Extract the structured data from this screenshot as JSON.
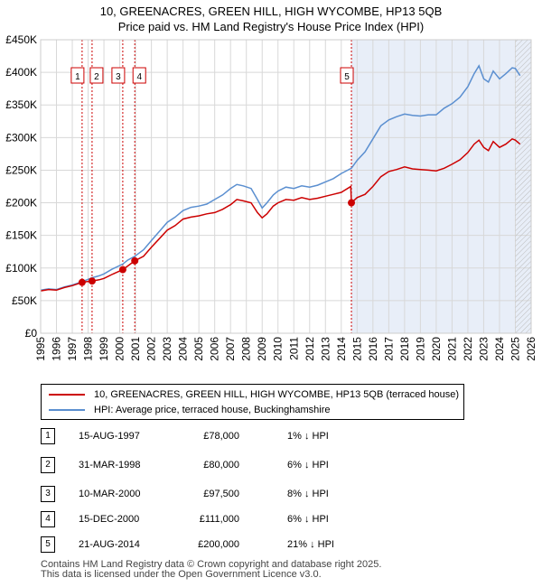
{
  "title_line1": "10, GREENACRES, GREEN HILL, HIGH WYCOMBE, HP13 5QB",
  "title_line2": "Price paid vs. HM Land Registry's House Price Index (HPI)",
  "colors": {
    "hpi": "#5b8fd0",
    "price": "#cc0000",
    "band": "#e8eef8",
    "vline": "#cc0000"
  },
  "chart_data": {
    "type": "line",
    "title": "10, GREENACRES, GREEN HILL, HIGH WYCOMBE, HP13 5QB",
    "subtitle": "Price paid vs. HM Land Registry's House Price Index (HPI)",
    "xlabel": "",
    "ylabel": "",
    "xlim": [
      1995,
      2026
    ],
    "ylim": [
      0,
      450000
    ],
    "grid": true,
    "y_ticks": [
      0,
      50000,
      100000,
      150000,
      200000,
      250000,
      300000,
      350000,
      400000,
      450000
    ],
    "y_tick_labels": [
      "£0",
      "£50K",
      "£100K",
      "£150K",
      "£200K",
      "£250K",
      "£300K",
      "£350K",
      "£400K",
      "£450K"
    ],
    "x_ticks": [
      1995,
      1996,
      1997,
      1998,
      1999,
      2000,
      2001,
      2002,
      2003,
      2004,
      2005,
      2006,
      2007,
      2008,
      2009,
      2010,
      2011,
      2012,
      2013,
      2014,
      2015,
      2016,
      2017,
      2018,
      2019,
      2020,
      2021,
      2022,
      2023,
      2024,
      2025,
      2026
    ],
    "x_tick_labels": [
      "1995",
      "1996",
      "1997",
      "1998",
      "1999",
      "2000",
      "2001",
      "2002",
      "2003",
      "2004",
      "2005",
      "2006",
      "2007",
      "2008",
      "2009",
      "2010",
      "2011",
      "2012",
      "2013",
      "2014",
      "2015",
      "2016",
      "2017",
      "2018",
      "2019",
      "2020",
      "2021",
      "2022",
      "2023",
      "2024",
      "2025",
      "2026"
    ],
    "highlight_from": 2014.64,
    "future_from": 2025.0,
    "series": [
      {
        "name": "10, GREENACRES, GREEN HILL, HIGH WYCOMBE, HP13 5QB (terraced house)",
        "color": "#cc0000",
        "x": [
          1995.0,
          1995.5,
          1996.0,
          1996.5,
          1997.0,
          1997.62,
          1997.9,
          1998.25,
          1998.7,
          1999.0,
          1999.5,
          2000.19,
          2000.5,
          2000.95,
          2001.5,
          2002.0,
          2002.5,
          2003.0,
          2003.5,
          2004.0,
          2004.5,
          2005.0,
          2005.5,
          2006.0,
          2006.5,
          2007.0,
          2007.4,
          2007.8,
          2008.3,
          2008.7,
          2009.0,
          2009.3,
          2009.7,
          2010.0,
          2010.5,
          2011.0,
          2011.5,
          2012.0,
          2012.5,
          2013.0,
          2013.5,
          2014.0,
          2014.4,
          2014.6,
          2014.64,
          2015.0,
          2015.5,
          2016.0,
          2016.5,
          2017.0,
          2017.5,
          2018.0,
          2018.5,
          2019.0,
          2019.5,
          2020.0,
          2020.5,
          2021.0,
          2021.5,
          2022.0,
          2022.4,
          2022.7,
          2023.0,
          2023.3,
          2023.6,
          2024.0,
          2024.4,
          2024.8,
          2025.0,
          2025.3
        ],
        "values": [
          65000,
          67000,
          66000,
          70000,
          73000,
          78000,
          79000,
          80000,
          82000,
          84000,
          90000,
          97500,
          103000,
          111000,
          118000,
          132000,
          145000,
          158000,
          165000,
          175000,
          178000,
          180000,
          183000,
          185000,
          190000,
          197000,
          205000,
          203000,
          200000,
          185000,
          177000,
          183000,
          195000,
          200000,
          205000,
          204000,
          208000,
          205000,
          207000,
          210000,
          213000,
          216000,
          222000,
          225000,
          200000,
          208000,
          213000,
          225000,
          240000,
          248000,
          251000,
          255000,
          252000,
          251000,
          250000,
          249000,
          253000,
          259000,
          266000,
          277000,
          290000,
          296000,
          285000,
          280000,
          294000,
          285000,
          290000,
          298000,
          296000,
          290000
        ]
      },
      {
        "name": "HPI: Average price, terraced house, Buckinghamshire",
        "color": "#5b8fd0",
        "x": [
          1995.0,
          1995.5,
          1996.0,
          1996.5,
          1997.0,
          1997.62,
          1998.25,
          1998.7,
          1999.0,
          1999.5,
          2000.19,
          2000.5,
          2000.95,
          2001.5,
          2002.0,
          2002.5,
          2003.0,
          2003.5,
          2004.0,
          2004.5,
          2005.0,
          2005.5,
          2006.0,
          2006.5,
          2007.0,
          2007.4,
          2007.8,
          2008.3,
          2008.7,
          2009.0,
          2009.3,
          2009.7,
          2010.0,
          2010.5,
          2011.0,
          2011.5,
          2012.0,
          2012.5,
          2013.0,
          2013.5,
          2014.0,
          2014.64,
          2015.0,
          2015.5,
          2016.0,
          2016.5,
          2017.0,
          2017.5,
          2018.0,
          2018.5,
          2019.0,
          2019.5,
          2020.0,
          2020.5,
          2021.0,
          2021.5,
          2022.0,
          2022.4,
          2022.7,
          2023.0,
          2023.3,
          2023.6,
          2024.0,
          2024.4,
          2024.8,
          2025.0,
          2025.3
        ],
        "values": [
          66000,
          68000,
          67000,
          71000,
          74000,
          79000,
          85000,
          88000,
          91000,
          98000,
          106000,
          112000,
          118000,
          128000,
          142000,
          156000,
          170000,
          178000,
          188000,
          193000,
          195000,
          198000,
          205000,
          212000,
          222000,
          228000,
          226000,
          222000,
          205000,
          192000,
          200000,
          212000,
          218000,
          224000,
          222000,
          226000,
          224000,
          227000,
          232000,
          237000,
          245000,
          253000,
          265000,
          278000,
          298000,
          318000,
          327000,
          332000,
          336000,
          334000,
          333000,
          335000,
          335000,
          345000,
          352000,
          362000,
          378000,
          398000,
          410000,
          390000,
          385000,
          402000,
          390000,
          398000,
          407000,
          406000,
          395000
        ]
      }
    ],
    "sale_markers": [
      {
        "label": "1",
        "x": 1997.62,
        "value": 78000
      },
      {
        "label": "2",
        "x": 1998.25,
        "value": 80000
      },
      {
        "label": "3",
        "x": 2000.19,
        "value": 97500
      },
      {
        "label": "4",
        "x": 2000.95,
        "value": 111000
      },
      {
        "label": "5",
        "x": 2014.64,
        "value": 200000
      }
    ]
  },
  "legend": {
    "price_label": "10, GREENACRES, GREEN HILL, HIGH WYCOMBE, HP13 5QB (terraced house)",
    "hpi_label": "HPI: Average price, terraced house, Buckinghamshire"
  },
  "sales": [
    {
      "num": "1",
      "date": "15-AUG-1997",
      "price": "£78,000",
      "hpi": "1% ↓ HPI"
    },
    {
      "num": "2",
      "date": "31-MAR-1998",
      "price": "£80,000",
      "hpi": "6% ↓ HPI"
    },
    {
      "num": "3",
      "date": "10-MAR-2000",
      "price": "£97,500",
      "hpi": "8% ↓ HPI"
    },
    {
      "num": "4",
      "date": "15-DEC-2000",
      "price": "£111,000",
      "hpi": "6% ↓ HPI"
    },
    {
      "num": "5",
      "date": "21-AUG-2014",
      "price": "£200,000",
      "hpi": "21% ↓ HPI"
    }
  ],
  "footer": {
    "line1": "Contains HM Land Registry data © Crown copyright and database right 2025.",
    "line2": "This data is licensed under the Open Government Licence v3.0."
  }
}
